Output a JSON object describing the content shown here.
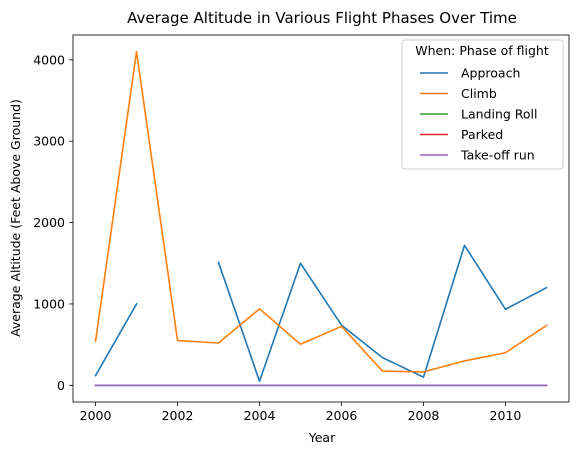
{
  "chart_data": {
    "type": "line",
    "title": "Average Altitude in Various Flight Phases Over Time",
    "xlabel": "Year",
    "ylabel": "Average Altitude (Feet Above Ground)",
    "xlim": [
      1999.45,
      2011.55
    ],
    "ylim": [
      -205,
      4305
    ],
    "xticks": [
      2000,
      2002,
      2004,
      2006,
      2008,
      2010
    ],
    "yticks": [
      0,
      1000,
      2000,
      3000,
      4000
    ],
    "grid": false,
    "legend": {
      "title": "When: Phase of flight",
      "placement": "top-right"
    },
    "x": [
      2000,
      2001,
      2002,
      2003,
      2004,
      2005,
      2006,
      2007,
      2008,
      2009,
      2010,
      2011
    ],
    "series": [
      {
        "name": "Approach",
        "color": "#1f77b4",
        "values": [
          120,
          1000,
          null,
          1510,
          50,
          1500,
          740,
          340,
          100,
          1720,
          935,
          1200
        ]
      },
      {
        "name": "Climb",
        "color": "#ff7f0e",
        "values": [
          540,
          4100,
          550,
          520,
          940,
          505,
          725,
          175,
          165,
          300,
          400,
          735
        ]
      },
      {
        "name": "Landing Roll",
        "color": "#2ca02c",
        "values": [
          0,
          0,
          0,
          0,
          0,
          0,
          0,
          0,
          0,
          0,
          0,
          0
        ]
      },
      {
        "name": "Parked",
        "color": "#d62728",
        "values": [
          0,
          0,
          0,
          0,
          0,
          0,
          0,
          0,
          0,
          0,
          0,
          0
        ]
      },
      {
        "name": "Take-off run",
        "color": "#9467bd",
        "values": [
          0,
          0,
          0,
          0,
          0,
          0,
          0,
          0,
          0,
          0,
          0,
          0
        ]
      }
    ]
  }
}
